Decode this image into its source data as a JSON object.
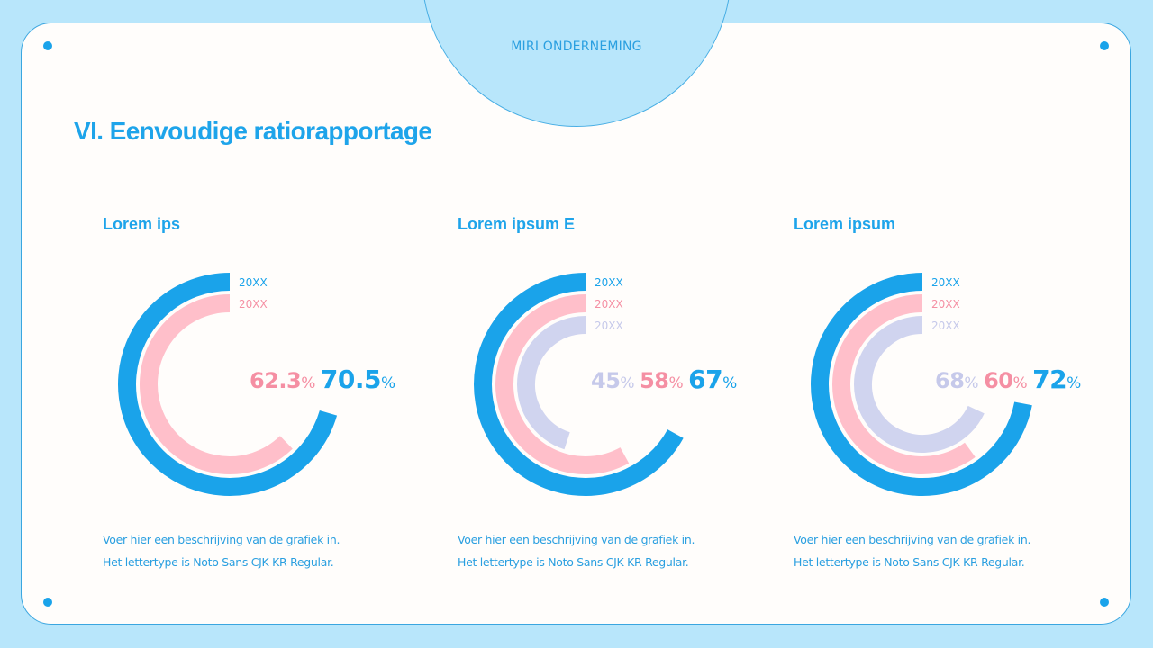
{
  "header": {
    "company": "MIRI ONDERNEMING",
    "title": "VI. Eenvoudige ratiorapportage"
  },
  "colors": {
    "background": "#b8e6fb",
    "card": "#fffdfb",
    "accent_blue": "#1aa3ea",
    "pink": "#ffbfca",
    "pink_text": "#f58fa3",
    "lavender": "#d0d4ef",
    "lavender_text": "#c6c9ea"
  },
  "charts": [
    {
      "title": "Lorem ips",
      "series": [
        {
          "label": "20XX",
          "value": "70.5",
          "color": "blue"
        },
        {
          "label": "20XX",
          "value": "62.3",
          "color": "pink"
        }
      ],
      "description": [
        "Voer hier een beschrijving van de grafiek in.",
        "Het lettertype is Noto Sans CJK KR Regular."
      ]
    },
    {
      "title": "Lorem ipsum E",
      "series": [
        {
          "label": "20XX",
          "value": "67",
          "color": "blue"
        },
        {
          "label": "20XX",
          "value": "58",
          "color": "pink"
        },
        {
          "label": "20XX",
          "value": "45",
          "color": "lavender"
        }
      ],
      "description": [
        "Voer hier een beschrijving van de grafiek in.",
        "Het lettertype is Noto Sans CJK KR Regular."
      ]
    },
    {
      "title": "Lorem ipsum",
      "series": [
        {
          "label": "20XX",
          "value": "72",
          "color": "blue"
        },
        {
          "label": "20XX",
          "value": "60",
          "color": "pink"
        },
        {
          "label": "20XX",
          "value": "68",
          "color": "lavender"
        }
      ],
      "description": [
        "Voer hier een beschrijving van de grafiek in.",
        "Het lettertype is Noto Sans CJK KR Regular."
      ]
    }
  ],
  "percent_sign": "%",
  "chart_data": [
    {
      "type": "radial-bar",
      "title": "Lorem ips",
      "categories": [
        "20XX",
        "20XX"
      ],
      "series": [
        {
          "name": "20XX (outer, blue)",
          "values": [
            70.5
          ]
        },
        {
          "name": "20XX (inner, pink)",
          "values": [
            62.3
          ]
        }
      ],
      "unit": "%",
      "ylim": [
        0,
        100
      ],
      "start_angle": "12 o'clock, counter-clockwise"
    },
    {
      "type": "radial-bar",
      "title": "Lorem ipsum E",
      "categories": [
        "20XX",
        "20XX",
        "20XX"
      ],
      "series": [
        {
          "name": "20XX (outer, blue)",
          "values": [
            67
          ]
        },
        {
          "name": "20XX (middle, pink)",
          "values": [
            58
          ]
        },
        {
          "name": "20XX (inner, lavender)",
          "values": [
            45
          ]
        }
      ],
      "unit": "%",
      "ylim": [
        0,
        100
      ],
      "start_angle": "12 o'clock, counter-clockwise"
    },
    {
      "type": "radial-bar",
      "title": "Lorem ipsum",
      "categories": [
        "20XX",
        "20XX",
        "20XX"
      ],
      "series": [
        {
          "name": "20XX (outer, blue)",
          "values": [
            72
          ]
        },
        {
          "name": "20XX (middle, pink)",
          "values": [
            60
          ]
        },
        {
          "name": "20XX (inner, lavender)",
          "values": [
            68
          ]
        }
      ],
      "unit": "%",
      "ylim": [
        0,
        100
      ],
      "start_angle": "12 o'clock, counter-clockwise"
    }
  ]
}
